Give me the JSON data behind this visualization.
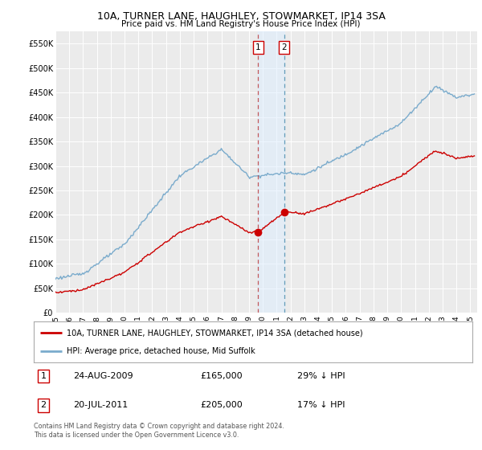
{
  "title": "10A, TURNER LANE, HAUGHLEY, STOWMARKET, IP14 3SA",
  "subtitle": "Price paid vs. HM Land Registry's House Price Index (HPI)",
  "legend_label_red": "10A, TURNER LANE, HAUGHLEY, STOWMARKET, IP14 3SA (detached house)",
  "legend_label_blue": "HPI: Average price, detached house, Mid Suffolk",
  "transaction1_label": "1",
  "transaction1_date": "24-AUG-2009",
  "transaction1_price": "£165,000",
  "transaction1_pct": "29% ↓ HPI",
  "transaction2_label": "2",
  "transaction2_date": "20-JUL-2011",
  "transaction2_price": "£205,000",
  "transaction2_pct": "17% ↓ HPI",
  "footnote": "Contains HM Land Registry data © Crown copyright and database right 2024.\nThis data is licensed under the Open Government Licence v3.0.",
  "ylim": [
    0,
    575000
  ],
  "yticks": [
    0,
    50000,
    100000,
    150000,
    200000,
    250000,
    300000,
    350000,
    400000,
    450000,
    500000,
    550000
  ],
  "ytick_labels": [
    "£0",
    "£50K",
    "£100K",
    "£150K",
    "£200K",
    "£250K",
    "£300K",
    "£350K",
    "£400K",
    "£450K",
    "£500K",
    "£550K"
  ],
  "bg_color": "#ffffff",
  "plot_bg_color": "#ebebeb",
  "red_color": "#cc0000",
  "blue_color": "#7aabcc",
  "marker1_x": 2009.65,
  "marker1_y": 165000,
  "marker2_x": 2011.55,
  "marker2_y": 205000,
  "vline1_x": 2009.65,
  "vline2_x": 2011.55,
  "xmin": 1995,
  "xmax": 2025.5,
  "vspan_color": "#ddeeff",
  "vspan_alpha": 0.5
}
